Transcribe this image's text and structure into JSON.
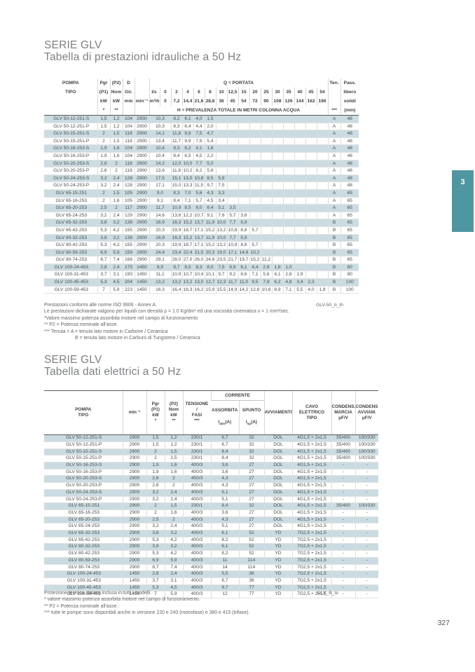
{
  "page": {
    "number": "327",
    "side_tab_label": "3",
    "colors": {
      "tab_teal": "#4f97a0",
      "row_shade": "#cadce1",
      "rule_dark": "#55565a"
    }
  },
  "hydraulic_section": {
    "title": "SERIE GLV",
    "subtitle": "Tabella di prestazioni idrauliche a 50 Hz",
    "header": {
      "pompa": "POMPA",
      "tipo": "TIPO",
      "pgr": "Pgr",
      "p1_label": "(P1)",
      "kw1": "kW",
      "star1": "*",
      "p2_label": "(P2)",
      "nom": "Nom",
      "kw2": "kW",
      "star2": "**",
      "d": "D",
      "gir": "Gir.",
      "mm": "mm",
      "rpm": "min⁻¹",
      "q_title": "Q = PORTATA",
      "unit_ls": "l/s",
      "unit_m3h": "m³/h",
      "h_title": "H = PREVALENZA TOTALE IN METRI COLONNA ACQUA",
      "ten": "Ten.",
      "ten_stars": "***",
      "pass1": "Pass.",
      "pass2": "libero",
      "pass3": "solidi",
      "pass4": "(mm)"
    },
    "flow_ls": [
      "0",
      "2",
      "4",
      "6",
      "8",
      "10",
      "12,5",
      "15",
      "20",
      "25",
      "30",
      "35",
      "40",
      "45",
      "54"
    ],
    "flow_m3h": [
      "0",
      "7,2",
      "14,4",
      "21,6",
      "28,8",
      "36",
      "45",
      "54",
      "72",
      "90",
      "108",
      "126",
      "144",
      "162",
      "196"
    ],
    "rows": [
      {
        "model": "GLV 50-12-251-S",
        "p1": "1,5",
        "p2": "1,2",
        "d": "104",
        "rpm": "2900",
        "h": [
          "10,3",
          "8,2",
          "6,1",
          "4,0",
          "1,5"
        ],
        "ten": "A",
        "pass": "48"
      },
      {
        "model": "GLV 50-12-251-P",
        "p1": "1,5",
        "p2": "1,2",
        "d": "104",
        "rpm": "2900",
        "h": [
          "10,3",
          "8,3",
          "6,4",
          "4,4",
          "2,0"
        ],
        "ten": "A",
        "pass": "48"
      },
      {
        "model": "GLV 50-15-251-S",
        "p1": "2",
        "p2": "1,5",
        "d": "118",
        "rpm": "2900",
        "h": [
          "14,1",
          "11,8",
          "9,8",
          "7,5",
          "4,7"
        ],
        "ten": "A",
        "pass": "48"
      },
      {
        "model": "GLV 50-15-251-P",
        "p1": "2",
        "p2": "1,5",
        "d": "118",
        "rpm": "2900",
        "h": [
          "13,4",
          "11,7",
          "9,9",
          "7,9",
          "5,4"
        ],
        "ten": "A",
        "pass": "48"
      },
      {
        "model": "GLV 50-16-253-S",
        "p1": "1,9",
        "p2": "1,6",
        "d": "104",
        "rpm": "2900",
        "h": [
          "10,4",
          "8,3",
          "6,2",
          "4,1",
          "1,6"
        ],
        "ten": "A",
        "pass": "48"
      },
      {
        "model": "GLV 50-16-253-P",
        "p1": "1,9",
        "p2": "1,6",
        "d": "104",
        "rpm": "2900",
        "h": [
          "10,4",
          "8,4",
          "6,5",
          "4,5",
          "2,2"
        ],
        "ten": "A",
        "pass": "48"
      },
      {
        "model": "GLV 50-20-253-S",
        "p1": "2,6",
        "p2": "2",
        "d": "118",
        "rpm": "2900",
        "h": [
          "14,2",
          "12,0",
          "10,0",
          "7,7",
          "5,0"
        ],
        "ten": "A",
        "pass": "48"
      },
      {
        "model": "GLV 50-20-253-P",
        "p1": "2,6",
        "p2": "2",
        "d": "118",
        "rpm": "2900",
        "h": [
          "13,6",
          "11,8",
          "10,2",
          "8,2",
          "5,6"
        ],
        "ten": "A",
        "pass": "48"
      },
      {
        "model": "GLV 50-24-253-S",
        "p1": "3,2",
        "p2": "2,4",
        "d": "128",
        "rpm": "2900",
        "h": [
          "17,5",
          "15,1",
          "13,0",
          "10,8",
          "8,5",
          "5,8"
        ],
        "ten": "A",
        "pass": "48"
      },
      {
        "model": "GLV 50-24-253-P",
        "p1": "3,2",
        "p2": "2,4",
        "d": "128",
        "rpm": "2900",
        "h": [
          "17,1",
          "15,0",
          "13,3",
          "11,5",
          "9,7",
          "7,5"
        ],
        "ten": "A",
        "pass": "48"
      },
      {
        "model": "GLV 65-15-251",
        "p1": "2",
        "p2": "1,5",
        "d": "105",
        "rpm": "2900",
        "h": [
          "9,0",
          "8,3",
          "7,0",
          "5,6",
          "4,3",
          "3,3"
        ],
        "ten": "A",
        "pass": "65"
      },
      {
        "model": "GLV 65-16-253",
        "p1": "2",
        "p2": "1,6",
        "d": "105",
        "rpm": "2900",
        "h": [
          "9,1",
          "8,4",
          "7,1",
          "5,7",
          "4,5",
          "3,4"
        ],
        "ten": "A",
        "pass": "65"
      },
      {
        "model": "GLV 65-20-253",
        "p1": "2,5",
        "p2": "2",
        "d": "117",
        "rpm": "2900",
        "h": [
          "11,7",
          "10,9",
          "9,5",
          "8,0",
          "6,4",
          "5,1",
          "3,5"
        ],
        "ten": "A",
        "pass": "65"
      },
      {
        "model": "GLV 65-24-253",
        "p1": "3,2",
        "p2": "2,4",
        "d": "129",
        "rpm": "2900",
        "h": [
          "14,6",
          "13,6",
          "12,2",
          "10,7",
          "9,1",
          "7,6",
          "5,7",
          "3,6"
        ],
        "ten": "A",
        "pass": "65"
      },
      {
        "model": "GLV 65-32-253",
        "p1": "3,8",
        "p2": "3,2",
        "d": "138",
        "rpm": "2900",
        "h": [
          "16,9",
          "16,3",
          "15,2",
          "13,7",
          "11,9",
          "10,0",
          "7,7",
          "5,9"
        ],
        "ten": "B",
        "pass": "65"
      },
      {
        "model": "GLV 65-42-253",
        "p1": "5,3",
        "p2": "4,2",
        "d": "155",
        "rpm": "2900",
        "h": [
          "20,3",
          "19,9",
          "18,7",
          "17,1",
          "15,2",
          "13,2",
          "10,8",
          "8,8",
          "5,7"
        ],
        "ten": "B",
        "pass": "65"
      },
      {
        "model": "GLV 80-32-253",
        "p1": "3,8",
        "p2": "3,2",
        "d": "138",
        "rpm": "2900",
        "h": [
          "16,9",
          "16,3",
          "15,2",
          "13,7",
          "11,9",
          "10,0",
          "7,7",
          "5,9"
        ],
        "ten": "B",
        "pass": "65"
      },
      {
        "model": "GLV 80-42-253",
        "p1": "5,3",
        "p2": "4,2",
        "d": "155",
        "rpm": "2900",
        "h": [
          "20,3",
          "19,9",
          "18,7",
          "17,1",
          "15,2",
          "13,2",
          "10,8",
          "8,8",
          "5,7"
        ],
        "ten": "B",
        "pass": "65"
      },
      {
        "model": "GLV 80-59-253",
        "p1": "6,9",
        "p2": "5,9",
        "d": "159",
        "rpm": "2900",
        "h": [
          "24,4",
          "23,4",
          "22,4",
          "21,5",
          "20,3",
          "19,0",
          "17,1",
          "14,8",
          "10,2"
        ],
        "ten": "B",
        "pass": "65"
      },
      {
        "model": "GLV 80-74-253",
        "p1": "8,7",
        "p2": "7,4",
        "d": "168",
        "rpm": "2900",
        "h": [
          "29,1",
          "28,0",
          "27,0",
          "26,0",
          "24,8",
          "23,5",
          "21,7",
          "19,7",
          "15,2",
          "11,2"
        ],
        "ten": "B",
        "pass": "65"
      },
      {
        "model": "GLV 100-24-453",
        "p1": "2,8",
        "p2": "2,4",
        "d": "175",
        "rpm": "1450",
        "h": [
          "8,9",
          "8,7",
          "8,5",
          "8,3",
          "8,0",
          "7,5",
          "6,9",
          "6,1",
          "4,4",
          "2,9",
          "1,8",
          "1,0"
        ],
        "ten": "B",
        "pass": "80"
      },
      {
        "model": "GLV 100-31-453",
        "p1": "3,7",
        "p2": "3,1",
        "d": "193",
        "rpm": "1450",
        "h": [
          "11,1",
          "10,9",
          "10,7",
          "10,4",
          "10,1",
          "9,7",
          "9,2",
          "8,6",
          "7,1",
          "5,6",
          "4,1",
          "2,8",
          "1,9"
        ],
        "ten": "B",
        "pass": "80"
      },
      {
        "model": "GLV 100-45-453",
        "p1": "5,3",
        "p2": "4,5",
        "d": "204",
        "rpm": "1450",
        "h": [
          "13,2",
          "13,2",
          "13,2",
          "13,0",
          "12,7",
          "12,3",
          "11,7",
          "11,0",
          "9,5",
          "7,9",
          "6,2",
          "4,8",
          "3,4",
          "2,3"
        ],
        "ten": "B",
        "pass": "100"
      },
      {
        "model": "GLV 100-59-453",
        "p1": "7",
        "p2": "5,9",
        "d": "223",
        "rpm": "1450",
        "h": [
          "16,3",
          "16,4",
          "16,3",
          "16,2",
          "15,9",
          "15,5",
          "14,9",
          "14,2",
          "12,6",
          "10,8",
          "8,9",
          "7,1",
          "5,5",
          "4,0",
          "1,8"
        ],
        "ten": "B",
        "pass": "100"
      }
    ],
    "group_break_after_rows": [
      10,
      16,
      20
    ],
    "footnotes": [
      "Prestazioni conformi alle norme ISO 9906 - Annex A.",
      "Le prestazioni dichiarate valgono per liquidi con densità ρ = 1.0 Kg/dm³ ed una viscosità cinematica ν = 1 mm²/sec.",
      "*Valore massimo potenza assorbita motore nel campo di funzionamento",
      "** P2 = Potenza nominale all'asse.",
      "*** Tenuta = A = tenuta lato motore in Carbone / Ceramica",
      "B = tenuta lato motore in Carburo di Tungsteno / Ceramica"
    ],
    "code": "GLV-50_b_th"
  },
  "electrical_section": {
    "title": "SERIE GLV",
    "subtitle": "Tabella dati elettrici a 50 Hz",
    "header": {
      "pompa": "POMPA\nTIPO",
      "rpm": "min⁻¹",
      "pgr": "Pgr\n(P1)\nkW\n*",
      "p2": "(P2)\nNom\nkW\n**",
      "tensione": "TENSIONE\n/\nFASI\n***",
      "corrente": "CORRENTE",
      "assorbita_label": "ASSORBITA",
      "assorbita_sym": "I",
      "assorbita_sub": "abs",
      "assorbita_unit": "(A)",
      "spunto_label": "SPUNTO",
      "spunto_sym": "I",
      "spunto_sub": "sp",
      "spunto_unit": "(A)",
      "avviamento": "AVVIAMENTO",
      "cavo": "CAVO\nELETTRICO\nTIPO",
      "cond_marcia": "CONDENS.\nMARCIA\nμF/V",
      "cond_avviam": "CONDENS.\nAVVIAM.\nμF/V"
    },
    "rows": [
      {
        "model": "GLV 50-12-251-S",
        "rpm": "2900",
        "p1": "1,5",
        "p2": "1,2",
        "v": "230/1",
        "ia": "6,7",
        "is": "32",
        "avv": "DOL",
        "cavo": "4G1,5 + 2x1,5",
        "cm": "35/400",
        "ca": "100/330"
      },
      {
        "model": "GLV 50-12-251-P",
        "rpm": "2900",
        "p1": "1,5",
        "p2": "1,2",
        "v": "230/1",
        "ia": "6,7",
        "is": "32",
        "avv": "DOL",
        "cavo": "4G1,5 + 2x1,5",
        "cm": "35/400",
        "ca": "100/330"
      },
      {
        "model": "GLV 50-15-251-S",
        "rpm": "2900",
        "p1": "2",
        "p2": "1,5",
        "v": "230/1",
        "ia": "8,4",
        "is": "32",
        "avv": "DOL",
        "cavo": "4G1,5 + 2x1,5",
        "cm": "35/400",
        "ca": "100/330"
      },
      {
        "model": "GLV 50-15-251-P",
        "rpm": "2900",
        "p1": "2",
        "p2": "1,5",
        "v": "230/1",
        "ia": "8,4",
        "is": "32",
        "avv": "DOL",
        "cavo": "4G1,5 + 2x1,5",
        "cm": "35/400",
        "ca": "100/330"
      },
      {
        "model": "GLV 50-16-253-S",
        "rpm": "2900",
        "p1": "1,9",
        "p2": "1,6",
        "v": "400/3",
        "ia": "3,6",
        "is": "27",
        "avv": "DOL",
        "cavo": "4G1,5 + 2x1,5",
        "cm": "-",
        "ca": "-"
      },
      {
        "model": "GLV 50-16-253-P",
        "rpm": "2900",
        "p1": "1,9",
        "p2": "1,6",
        "v": "400/3",
        "ia": "3,6",
        "is": "27",
        "avv": "DOL",
        "cavo": "4G1,5 + 2x1,5",
        "cm": "-",
        "ca": "-"
      },
      {
        "model": "GLV 50-20-253-S",
        "rpm": "2900",
        "p1": "2,6",
        "p2": "2",
        "v": "400/3",
        "ia": "4,3",
        "is": "27",
        "avv": "DOL",
        "cavo": "4G1,5 + 2x1,5",
        "cm": "-",
        "ca": "-"
      },
      {
        "model": "GLV 50-20-253-P",
        "rpm": "2900",
        "p1": "2,6",
        "p2": "2",
        "v": "400/3",
        "ia": "4,3",
        "is": "27",
        "avv": "DOL",
        "cavo": "4G1,5 + 2x1,5",
        "cm": "-",
        "ca": "-"
      },
      {
        "model": "GLV 50-24-253-S",
        "rpm": "2900",
        "p1": "3,2",
        "p2": "2,4",
        "v": "400/3",
        "ia": "5,1",
        "is": "27",
        "avv": "DOL",
        "cavo": "4G1,5 + 2x1,5",
        "cm": "-",
        "ca": "-"
      },
      {
        "model": "GLV 50-24-253-P",
        "rpm": "2900",
        "p1": "3,2",
        "p2": "2,4",
        "v": "400/3",
        "ia": "5,1",
        "is": "27",
        "avv": "DOL",
        "cavo": "4G1,5 + 2x1,5",
        "cm": "-",
        "ca": "-"
      },
      {
        "model": "GLV 65-15-251",
        "rpm": "2900",
        "p1": "2",
        "p2": "1,5",
        "v": "230/1",
        "ia": "8,4",
        "is": "32",
        "avv": "DOL",
        "cavo": "4G1,5 + 2x1,5",
        "cm": "35/400",
        "ca": "100/330"
      },
      {
        "model": "GLV 65-16-253",
        "rpm": "2900",
        "p1": "2",
        "p2": "1,6",
        "v": "400/3",
        "ia": "3,6",
        "is": "27",
        "avv": "DOL",
        "cavo": "4G1,5 + 2x1,5",
        "cm": "-",
        "ca": "-"
      },
      {
        "model": "GLV 65-20-253",
        "rpm": "2900",
        "p1": "2,5",
        "p2": "2",
        "v": "400/3",
        "ia": "4,3",
        "is": "27",
        "avv": "DOL",
        "cavo": "4G1,5 + 2x1,5",
        "cm": "-",
        "ca": "-"
      },
      {
        "model": "GLV 65-24-253",
        "rpm": "2900",
        "p1": "3,2",
        "p2": "2,4",
        "v": "400/3",
        "ia": "5,1",
        "is": "27",
        "avv": "DOL",
        "cavo": "4G1,5 + 2x1,5",
        "cm": "-",
        "ca": "-"
      },
      {
        "model": "GLV 65-32-253",
        "rpm": "2900",
        "p1": "3,8",
        "p2": "3,2",
        "v": "400/3",
        "ia": "6,1",
        "is": "52",
        "avv": "YD",
        "cavo": "7G2,5 + 2x1,5",
        "cm": "-",
        "ca": "-"
      },
      {
        "model": "GLV 65-42-253",
        "rpm": "2900",
        "p1": "5,3",
        "p2": "4,2",
        "v": "400/3",
        "ia": "8,2",
        "is": "52",
        "avv": "YD",
        "cavo": "7G2,5 + 2x1,5",
        "cm": "-",
        "ca": "-"
      },
      {
        "model": "GLV 80-32-253",
        "rpm": "2900",
        "p1": "3,8",
        "p2": "3,2",
        "v": "400/3",
        "ia": "6,1",
        "is": "52",
        "avv": "YD",
        "cavo": "7G2,5 + 2x1,5",
        "cm": "-",
        "ca": "-"
      },
      {
        "model": "GLV 80-42-253",
        "rpm": "2900",
        "p1": "5,3",
        "p2": "4,2",
        "v": "400/3",
        "ia": "8,2",
        "is": "52",
        "avv": "YD",
        "cavo": "7G2,5 + 2x1,5",
        "cm": "-",
        "ca": "-"
      },
      {
        "model": "GLV 80-59-253",
        "rpm": "2900",
        "p1": "6,9",
        "p2": "5,9",
        "v": "400/3",
        "ia": "11",
        "is": "114",
        "avv": "YD",
        "cavo": "7G2,5 + 2x1,5",
        "cm": "-",
        "ca": "-"
      },
      {
        "model": "GLV 80-74-253",
        "rpm": "2900",
        "p1": "8,7",
        "p2": "7,4",
        "v": "400/3",
        "ia": "14",
        "is": "114",
        "avv": "YD",
        "cavo": "7G2,5 + 2x1,5",
        "cm": "-",
        "ca": "-"
      },
      {
        "model": "GLV 100-24-453",
        "rpm": "1450",
        "p1": "2,8",
        "p2": "2,4",
        "v": "400/3",
        "ia": "5,5",
        "is": "38",
        "avv": "YD",
        "cavo": "7G2,5 + 2x1,5",
        "cm": "-",
        "ca": "-"
      },
      {
        "model": "GLV 100-31-453",
        "rpm": "1450",
        "p1": "3,7",
        "p2": "3,1",
        "v": "400/3",
        "ia": "6,7",
        "is": "38",
        "avv": "YD",
        "cavo": "7G2,5 + 2x1,5",
        "cm": "-",
        "ca": "-"
      },
      {
        "model": "GLV 100-45-453",
        "rpm": "1450",
        "p1": "5,3",
        "p2": "4,5",
        "v": "400/3",
        "ia": "9,7",
        "is": "77",
        "avv": "YD",
        "cavo": "7G2,5 + 2x1,5",
        "cm": "-",
        "ca": "-"
      },
      {
        "model": "GLV 100-59-453",
        "rpm": "1450",
        "p1": "7",
        "p2": "5,9",
        "v": "400/3",
        "ia": "12",
        "is": "77",
        "avv": "YD",
        "cavo": "7G2,5 + 2x1,5",
        "cm": "-",
        "ca": "-"
      }
    ],
    "group_break_after_rows": [
      4,
      10,
      16,
      20
    ],
    "footnotes": [
      "Protezione termica statore inclusa in tutti i modelli.",
      "* valore massimo potenza assorbita motore nel campo di funzionamento.",
      "** P2 = Potenza nominale all'asse.",
      "*** tutte le pompe sono disponibili anche in versione 220 e 240 (monofase) e 380 e 415 (trifase)."
    ],
    "code": "GLV_B_te"
  }
}
